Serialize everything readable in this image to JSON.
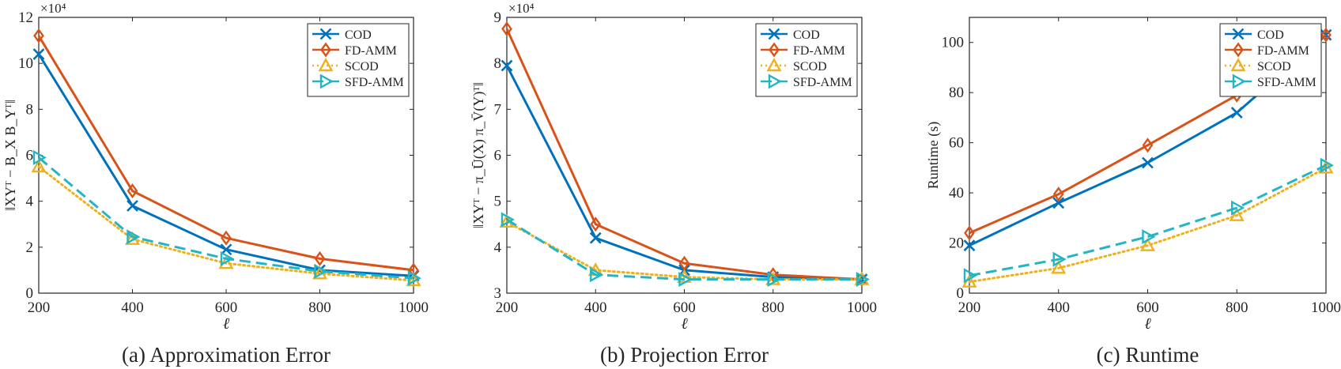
{
  "colors": {
    "COD": "#0072BD",
    "FD-AMM": "#D95319",
    "SCOD": "#EDB120",
    "SFD-AMM": "#22B5C6",
    "axis": "#262626"
  },
  "legend_position": "top-right",
  "chart_data": [
    {
      "type": "line",
      "caption": "(a)  Approximation Error",
      "xlabel": "ℓ",
      "ylabel": "‖XYᵀ − B_X B_Yᵀ‖",
      "exponent_label": "×10⁴",
      "exponent": 4,
      "x": [
        200,
        400,
        600,
        800,
        1000
      ],
      "xlim": [
        200,
        1000
      ],
      "ylim": [
        0,
        12
      ],
      "yticks": [
        0,
        2,
        4,
        6,
        8,
        10,
        12
      ],
      "xticks": [
        200,
        400,
        600,
        800,
        1000
      ],
      "series": [
        {
          "name": "COD",
          "values": [
            10.4,
            3.8,
            1.9,
            1.0,
            0.75
          ]
        },
        {
          "name": "FD-AMM",
          "values": [
            11.2,
            4.45,
            2.4,
            1.5,
            1.0
          ]
        },
        {
          "name": "SCOD",
          "values": [
            5.5,
            2.35,
            1.3,
            0.85,
            0.55
          ]
        },
        {
          "name": "SFD-AMM",
          "values": [
            5.9,
            2.45,
            1.5,
            0.95,
            0.65
          ]
        }
      ]
    },
    {
      "type": "line",
      "caption": "(b)  Projection Error",
      "xlabel": "ℓ",
      "ylabel": "‖XYᵀ − π_Ū(X) π_V̄(Y)ᵀ‖",
      "exponent_label": "×10⁴",
      "exponent": 4,
      "x": [
        200,
        400,
        600,
        800,
        1000
      ],
      "xlim": [
        200,
        1000
      ],
      "ylim": [
        3,
        9
      ],
      "yticks": [
        3,
        4,
        5,
        6,
        7,
        8,
        9
      ],
      "xticks": [
        200,
        400,
        600,
        800,
        1000
      ],
      "series": [
        {
          "name": "COD",
          "values": [
            7.95,
            4.2,
            3.5,
            3.35,
            3.3
          ]
        },
        {
          "name": "FD-AMM",
          "values": [
            8.75,
            4.5,
            3.65,
            3.4,
            3.3
          ]
        },
        {
          "name": "SCOD",
          "values": [
            4.55,
            3.5,
            3.35,
            3.3,
            3.3
          ]
        },
        {
          "name": "SFD-AMM",
          "values": [
            4.6,
            3.4,
            3.3,
            3.3,
            3.3
          ]
        }
      ]
    },
    {
      "type": "line",
      "caption": "(c)  Runtime",
      "xlabel": "ℓ",
      "ylabel": "Runtime (s)",
      "exponent_label": "",
      "exponent": 0,
      "x": [
        200,
        400,
        600,
        800,
        1000
      ],
      "xlim": [
        200,
        1000
      ],
      "ylim": [
        0,
        110
      ],
      "yticks": [
        0,
        20,
        40,
        60,
        80,
        100
      ],
      "xticks": [
        200,
        400,
        600,
        800,
        1000
      ],
      "series": [
        {
          "name": "COD",
          "values": [
            19,
            36,
            52,
            72,
            103
          ]
        },
        {
          "name": "FD-AMM",
          "values": [
            24,
            39.5,
            59,
            79,
            103
          ]
        },
        {
          "name": "SCOD",
          "values": [
            4.5,
            10,
            19,
            31,
            50
          ]
        },
        {
          "name": "SFD-AMM",
          "values": [
            7,
            13.5,
            22.5,
            34,
            51
          ]
        }
      ]
    }
  ]
}
